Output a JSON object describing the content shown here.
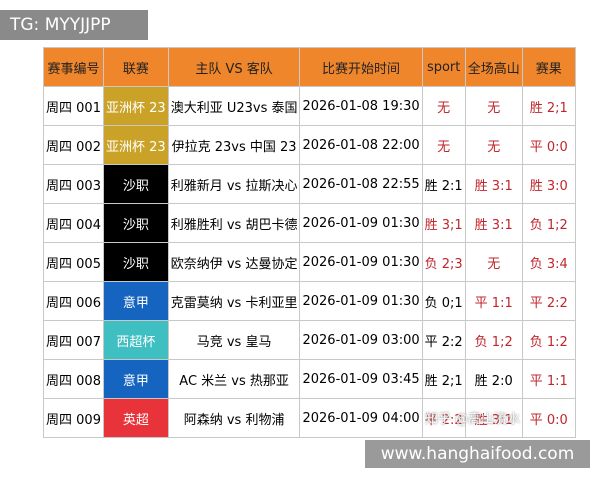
{
  "watermark": "TG: MYYJJPP",
  "site": "www.hanghaifood.com",
  "overlay": "知乎 @高山流水",
  "table": {
    "header": [
      "赛事编号",
      "联赛",
      "主队 VS 客队",
      "比赛开始时间",
      "sport",
      "全场高山",
      "赛果"
    ],
    "rows": [
      [
        "周四 001",
        "亚洲杯 23",
        "澳大利亚 U23vs 泰国",
        "2026-01-08 19:30",
        "无",
        "无",
        "胜 2;1"
      ],
      [
        "周四 002",
        "亚洲杯 23",
        "伊拉克 23vs 中国 23",
        "2026-01-08 22:00",
        "无",
        "无",
        "平 0:0"
      ],
      [
        "周四 003",
        "沙职",
        "利雅新月 vs 拉斯决心",
        "2026-01-08 22:55",
        "胜 2:1",
        "胜 3:1",
        "胜 3:0"
      ],
      [
        "周四 004",
        "沙职",
        "利雅胜利 vs 胡巴卡德",
        "2026-01-09 01:30",
        "胜 3;1",
        "胜 3:1",
        "负 1;2"
      ],
      [
        "周四 005",
        "沙职",
        "欧奈纳伊 vs 达曼协定",
        "2026-01-09 01:30",
        "负 2;3",
        "无",
        "负 3:4"
      ],
      [
        "周四 006",
        "意甲",
        "克雷莫纳 vs 卡利亚里",
        "2026-01-09 01:30",
        "负 0;1",
        "平 1:1",
        "平 2:2"
      ],
      [
        "周四 007",
        "西超杯",
        "马竞 vs 皇马",
        "2026-01-09 03:00",
        "平 2:2",
        "负 1;2",
        "负 1:2"
      ],
      [
        "周四 008",
        "意甲",
        "AC 米兰 vs 热那亚",
        "2026-01-09 03:45",
        "胜 2;1",
        "胜 2:0",
        "平 1:1"
      ],
      [
        "周四 009",
        "英超",
        "阿森纳 vs 利物浦",
        "2026-01-09 04:00",
        "平 2:2",
        "胜 3:1",
        "平 0:0"
      ]
    ]
  }
}
